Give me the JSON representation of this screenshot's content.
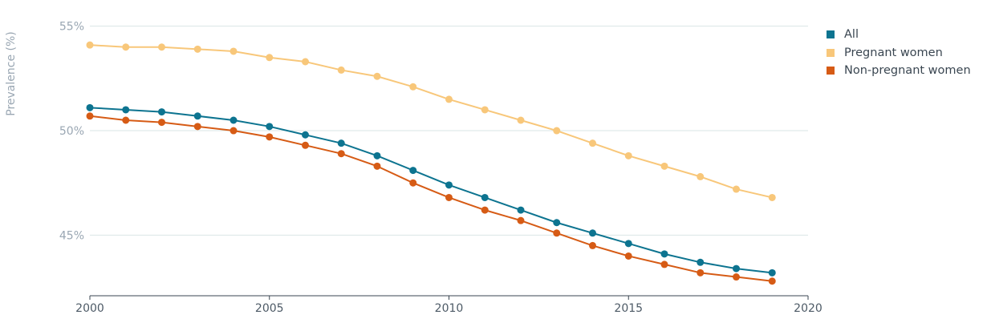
{
  "chart_data": {
    "type": "line",
    "ylabel": "Prevalence (%)",
    "xlabel": "",
    "x": [
      2000,
      2001,
      2002,
      2003,
      2004,
      2005,
      2006,
      2007,
      2008,
      2009,
      2010,
      2011,
      2012,
      2013,
      2014,
      2015,
      2016,
      2017,
      2018,
      2019
    ],
    "xlim": [
      2000,
      2020
    ],
    "xticks": [
      2000,
      2005,
      2010,
      2015,
      2020
    ],
    "ylim": [
      42.1,
      56.1
    ],
    "yticks": [
      45,
      50,
      55
    ],
    "ytick_labels": [
      "45%",
      "50%",
      "55%"
    ],
    "grid": "horizontal",
    "legend_position": "right",
    "series": [
      {
        "name": "All",
        "color": "#0d7490",
        "values": [
          51.1,
          51.0,
          50.9,
          50.7,
          50.5,
          50.2,
          49.8,
          49.4,
          48.8,
          48.1,
          47.4,
          46.8,
          46.2,
          45.6,
          45.1,
          44.6,
          44.1,
          43.7,
          43.4,
          43.2
        ]
      },
      {
        "name": "Pregnant women",
        "color": "#f8c77a",
        "values": [
          54.1,
          54.0,
          54.0,
          53.9,
          53.8,
          53.5,
          53.3,
          52.9,
          52.6,
          52.1,
          51.5,
          51.0,
          50.5,
          50.0,
          49.4,
          48.8,
          48.3,
          47.8,
          47.2,
          46.8
        ]
      },
      {
        "name": "Non-pregnant women",
        "color": "#d65b15",
        "values": [
          50.7,
          50.5,
          50.4,
          50.2,
          50.0,
          49.7,
          49.3,
          48.9,
          48.3,
          47.5,
          46.8,
          46.2,
          45.7,
          45.1,
          44.5,
          44.0,
          43.6,
          43.2,
          43.0,
          42.8
        ]
      }
    ]
  }
}
